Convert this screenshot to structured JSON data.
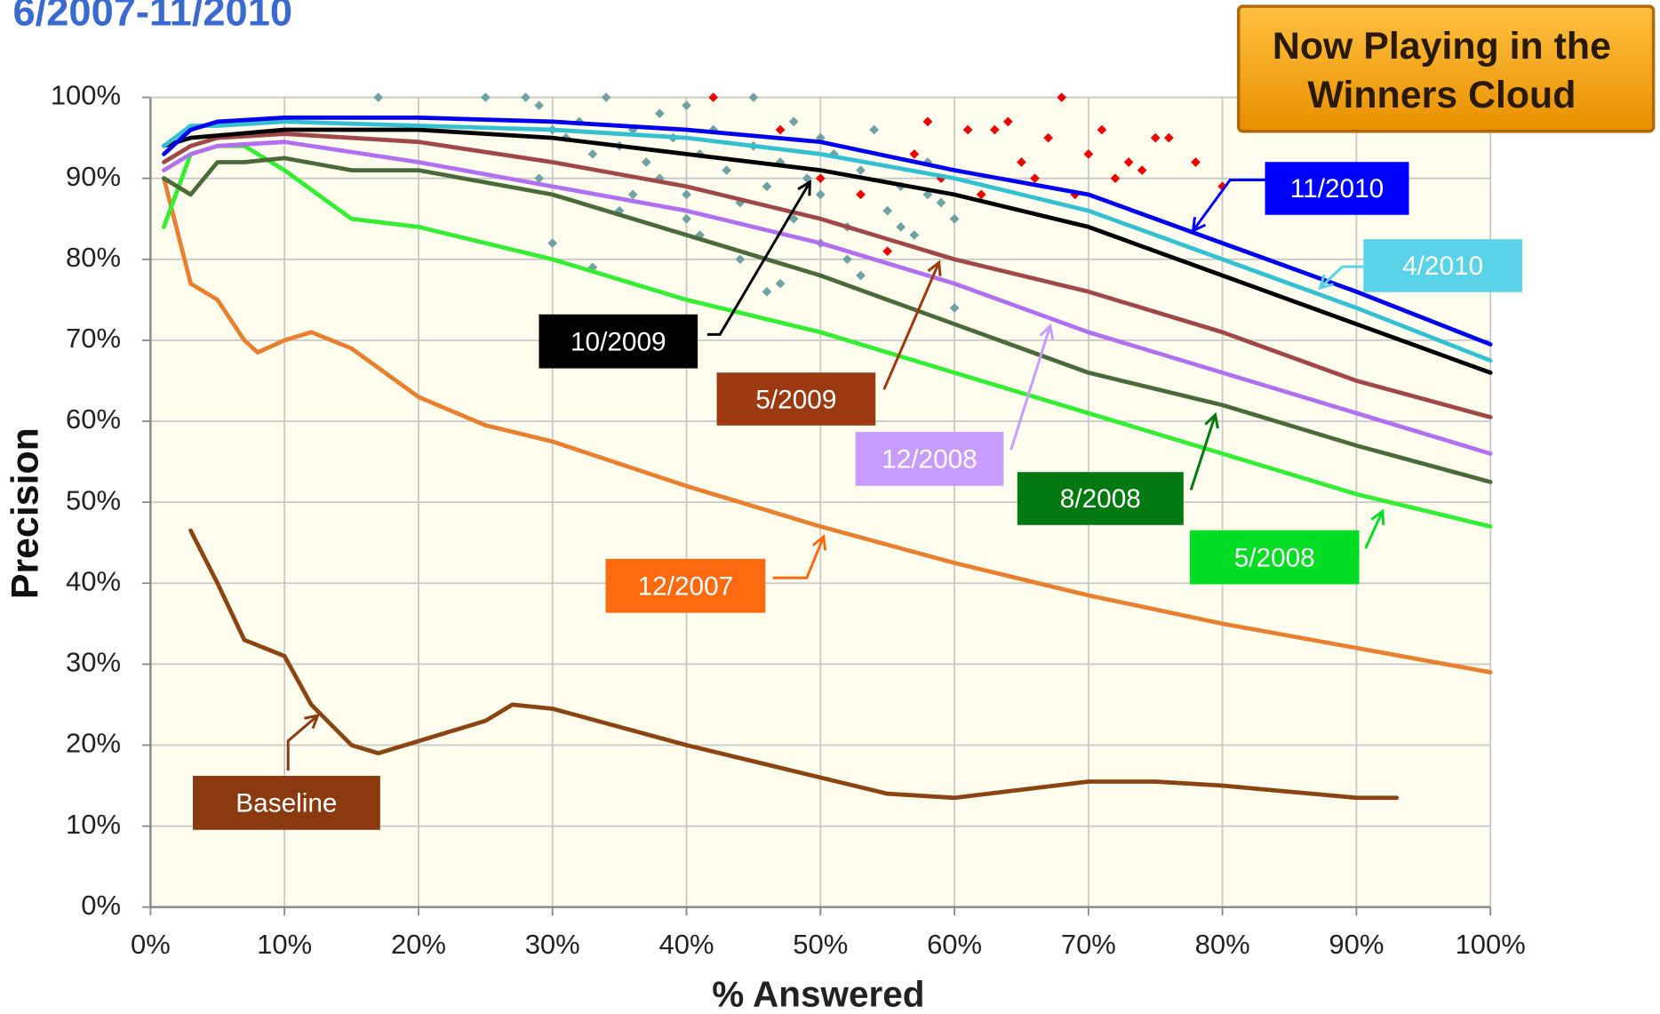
{
  "chart_data": {
    "type": "line",
    "title": "6/2007-11/2010",
    "badge": [
      "Now Playing in the",
      "Winners Cloud"
    ],
    "xlabel": "% Answered",
    "ylabel": "Precision",
    "xlim": [
      0,
      100
    ],
    "ylim": [
      0,
      100
    ],
    "grid": true,
    "xticks": [
      {
        "value": 0,
        "label": "0%"
      },
      {
        "value": 10,
        "label": "10%"
      },
      {
        "value": 20,
        "label": "20%"
      },
      {
        "value": 30,
        "label": "30%"
      },
      {
        "value": 40,
        "label": "40%"
      },
      {
        "value": 50,
        "label": "50%"
      },
      {
        "value": 60,
        "label": "60%"
      },
      {
        "value": 70,
        "label": "70%"
      },
      {
        "value": 80,
        "label": "80%"
      },
      {
        "value": 90,
        "label": "90%"
      },
      {
        "value": 100,
        "label": "100%"
      }
    ],
    "yticks": [
      {
        "value": 0,
        "label": "0%"
      },
      {
        "value": 10,
        "label": "10%"
      },
      {
        "value": 20,
        "label": "20%"
      },
      {
        "value": 30,
        "label": "30%"
      },
      {
        "value": 40,
        "label": "40%"
      },
      {
        "value": 50,
        "label": "50%"
      },
      {
        "value": 60,
        "label": "60%"
      },
      {
        "value": 70,
        "label": "70%"
      },
      {
        "value": 80,
        "label": "80%"
      },
      {
        "value": 90,
        "label": "90%"
      },
      {
        "value": 100,
        "label": "100%"
      }
    ],
    "series": [
      {
        "type": "scatter",
        "color": "#6fa3a3",
        "x": [
          17,
          25,
          28,
          29,
          30,
          31,
          32,
          33,
          34,
          35,
          36,
          37,
          38,
          38,
          39,
          40,
          40,
          41,
          42,
          43,
          44,
          45,
          45,
          46,
          47,
          48,
          48,
          49,
          50,
          50,
          51,
          52,
          53,
          54,
          55,
          56,
          57,
          58,
          59,
          60,
          30,
          33,
          36,
          40,
          44,
          47,
          50,
          53,
          56,
          60,
          29,
          35,
          41,
          46,
          52,
          58
        ],
        "values": [
          100,
          100,
          100,
          99,
          96,
          95,
          97,
          93,
          100,
          94,
          96,
          92,
          98,
          90,
          95,
          99,
          88,
          93,
          96,
          91,
          87,
          100,
          94,
          89,
          92,
          97,
          85,
          90,
          95,
          88,
          93,
          84,
          91,
          96,
          86,
          89,
          83,
          92,
          87,
          74,
          82,
          79,
          88,
          85,
          80,
          77,
          82,
          78,
          84,
          85,
          90,
          86,
          83,
          76,
          80,
          88
        ]
      },
      {
        "type": "scatter",
        "color": "#ee0000",
        "x": [
          42,
          47,
          50,
          53,
          55,
          57,
          58,
          61,
          62,
          63,
          65,
          66,
          67,
          68,
          70,
          71,
          72,
          75,
          76,
          80,
          73,
          69,
          64,
          59,
          78,
          74
        ],
        "values": [
          100,
          96,
          90,
          88,
          81,
          93,
          97,
          96,
          88,
          96,
          92,
          90,
          95,
          100,
          93,
          96,
          90,
          95,
          95,
          89,
          92,
          88,
          97,
          90,
          92,
          91
        ]
      },
      {
        "type": "line",
        "name": "Baseline",
        "color": "#8b4513",
        "box_color": "#8b3a10",
        "x": [
          3,
          5,
          7,
          10,
          12,
          15,
          17,
          20,
          25,
          27,
          30,
          40,
          50,
          55,
          60,
          65,
          70,
          75,
          80,
          90,
          93
        ],
        "values": [
          46.5,
          40,
          33,
          31,
          25,
          20,
          19,
          20.5,
          23,
          25,
          24.5,
          20,
          16,
          14,
          13.5,
          14.5,
          15.5,
          15.5,
          15,
          13.5,
          13.5
        ]
      },
      {
        "type": "line",
        "name": "12/2007",
        "color": "#e88030",
        "box_color": "#ff6a10",
        "x": [
          1,
          3,
          5,
          7,
          8,
          10,
          12,
          15,
          20,
          25,
          30,
          40,
          50,
          60,
          70,
          80,
          90,
          100
        ],
        "values": [
          90,
          77,
          75,
          70,
          68.5,
          70,
          71,
          69,
          63,
          59.5,
          57.5,
          52,
          47,
          42.5,
          38.5,
          35,
          32,
          29
        ]
      },
      {
        "type": "line",
        "name": "5/2008",
        "color": "#33ee33",
        "box_color": "#00dd22",
        "x": [
          1,
          3,
          5,
          7,
          10,
          15,
          20,
          30,
          40,
          50,
          60,
          70,
          80,
          90,
          100
        ],
        "values": [
          84,
          93,
          94,
          94,
          91,
          85,
          84,
          80,
          75,
          71,
          66,
          61,
          56,
          51,
          47
        ]
      },
      {
        "type": "line",
        "name": "8/2008",
        "color": "#4a6a3a",
        "box_color": "#007a10",
        "x": [
          1,
          3,
          5,
          7,
          10,
          15,
          20,
          30,
          40,
          50,
          55,
          60,
          70,
          80,
          90,
          100
        ],
        "values": [
          90,
          88,
          92,
          92,
          92.5,
          91,
          91,
          88,
          83,
          78,
          75,
          72,
          66,
          62,
          57,
          52.5
        ]
      },
      {
        "type": "line",
        "name": "12/2008",
        "color": "#b070f0",
        "box_color": "#c89cff",
        "x": [
          1,
          3,
          5,
          10,
          20,
          30,
          40,
          50,
          60,
          70,
          80,
          90,
          100
        ],
        "values": [
          91,
          93,
          94,
          94.5,
          92,
          89,
          86,
          82,
          77,
          71,
          66,
          61,
          56
        ]
      },
      {
        "type": "line",
        "name": "5/2009",
        "color": "#a04848",
        "box_color": "#9b3a10",
        "x": [
          1,
          3,
          5,
          10,
          20,
          30,
          40,
          50,
          60,
          70,
          80,
          90,
          100
        ],
        "values": [
          92,
          94,
          95,
          95.5,
          94.5,
          92,
          89,
          85,
          80,
          76,
          71,
          65,
          60.5
        ]
      },
      {
        "type": "line",
        "name": "10/2009",
        "color": "#000000",
        "box_color": "#000000",
        "x": [
          1,
          3,
          10,
          20,
          30,
          40,
          50,
          60,
          70,
          80,
          90,
          100
        ],
        "values": [
          94,
          95,
          96,
          96,
          95,
          93,
          91,
          88,
          84,
          78,
          72,
          66
        ]
      },
      {
        "type": "line",
        "name": "4/2010",
        "color": "#33c0d0",
        "box_color": "#5ad2e8",
        "x": [
          1,
          3,
          5,
          10,
          20,
          30,
          40,
          50,
          60,
          70,
          80,
          90,
          100
        ],
        "values": [
          94,
          96.5,
          96.5,
          97,
          96.5,
          96,
          95,
          93,
          90,
          86,
          80,
          74,
          67.5
        ]
      },
      {
        "type": "line",
        "name": "11/2010",
        "color": "#0000ee",
        "box_color": "#0000ff",
        "x": [
          1,
          3,
          5,
          10,
          20,
          30,
          40,
          50,
          60,
          70,
          80,
          90,
          100
        ],
        "values": [
          93,
          96,
          97,
          97.5,
          97.5,
          97,
          96,
          94.5,
          91,
          88,
          82,
          76,
          69.5
        ]
      }
    ]
  }
}
